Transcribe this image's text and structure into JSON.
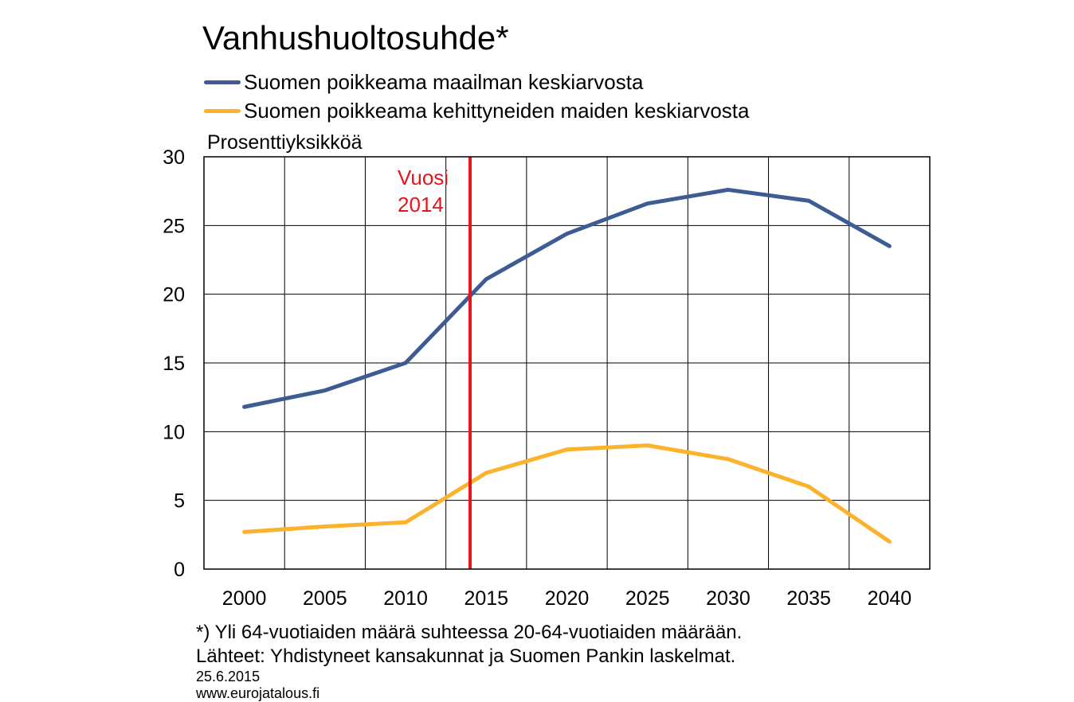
{
  "title": "Vanhushuoltosuhde*",
  "footnote": "*) Yli 64-vuotiaiden määrä suhteessa 20-64-vuotiaiden määrään.",
  "source": "Lähteet: Yhdistyneet kansakunnat ja Suomen Pankin laskelmat.",
  "date": "25.6.2015",
  "website": "www.eurojatalous.fi",
  "chart_data": {
    "type": "line",
    "title": "Vanhushuoltosuhde*",
    "ylabel": "Prosenttiyksikköä",
    "xlabel": "",
    "x": [
      2000,
      2005,
      2010,
      2015,
      2020,
      2025,
      2030,
      2035,
      2040
    ],
    "xlim": [
      1997.5,
      2042.5
    ],
    "ylim": [
      0,
      30
    ],
    "yticks": [
      0,
      5,
      10,
      15,
      20,
      25,
      30
    ],
    "grid": true,
    "legend_position": "top",
    "series": [
      {
        "name": "Suomen poikkeama maailman keskiarvosta",
        "color": "#3d5c94",
        "values": [
          11.8,
          13.0,
          15.0,
          21.1,
          24.4,
          26.6,
          27.6,
          26.8,
          23.5
        ]
      },
      {
        "name": "Suomen poikkeama kehittyneiden maiden keskiarvosta",
        "color": "#fbb22c",
        "values": [
          2.7,
          3.1,
          3.4,
          7.0,
          8.7,
          9.0,
          8.0,
          6.0,
          2.0
        ]
      }
    ],
    "annotations": [
      {
        "x": 2014,
        "lines": [
          "Vuosi",
          "2014"
        ],
        "color": "#e8141c"
      }
    ]
  }
}
